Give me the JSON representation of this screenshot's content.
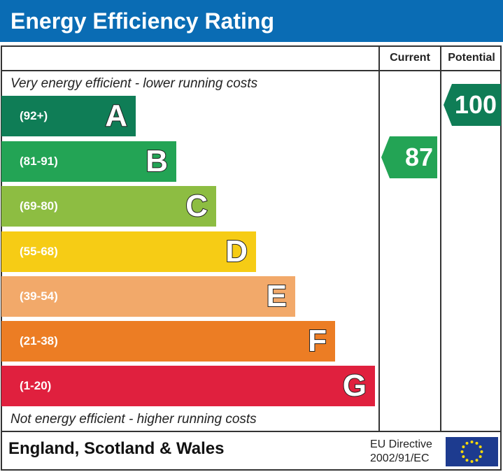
{
  "title": "Energy Efficiency Rating",
  "columns": {
    "current": "Current",
    "potential": "Potential"
  },
  "top_note": "Very energy efficient - lower running costs",
  "bottom_note": "Not energy efficient - higher running costs",
  "bands": [
    {
      "letter": "A",
      "range": "(92+)",
      "color": "#0f7d56"
    },
    {
      "letter": "B",
      "range": "(81-91)",
      "color": "#23a455"
    },
    {
      "letter": "C",
      "range": "(69-80)",
      "color": "#8dbd42"
    },
    {
      "letter": "D",
      "range": "(55-68)",
      "color": "#f6cc15"
    },
    {
      "letter": "E",
      "range": "(39-54)",
      "color": "#f2a96a"
    },
    {
      "letter": "F",
      "range": "(21-38)",
      "color": "#ec7d24"
    },
    {
      "letter": "G",
      "range": "(1-20)",
      "color": "#e0203e"
    }
  ],
  "current": {
    "value": "87",
    "band": "B",
    "color": "#23a455"
  },
  "potential": {
    "value": "100",
    "band": "A",
    "color": "#0f7d56"
  },
  "footer": {
    "region": "England, Scotland & Wales",
    "directive_line1": "EU Directive",
    "directive_line2": "2002/91/EC",
    "flag_icon": "eu-flag-icon"
  },
  "header_color": "#0a6cb4"
}
